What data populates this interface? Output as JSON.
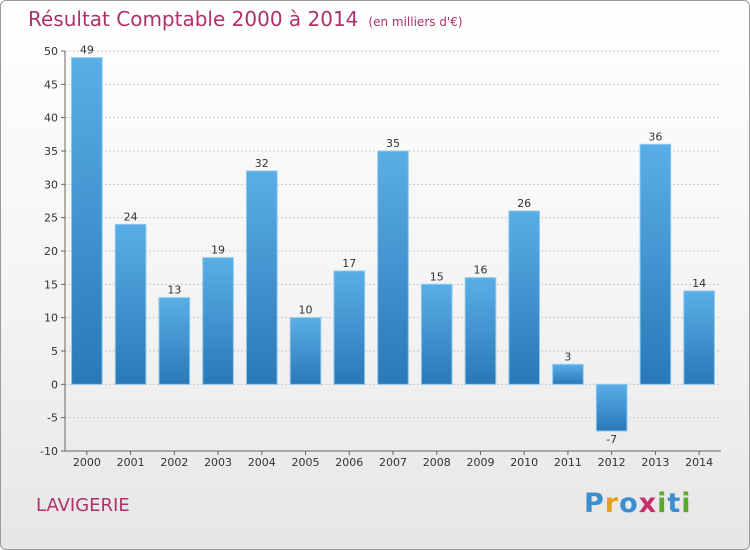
{
  "chart_data": {
    "type": "bar",
    "title": "Résultat Comptable 2000 à 2014",
    "subtitle": "(en milliers d'€)",
    "categories": [
      "2000",
      "2001",
      "2002",
      "2003",
      "2004",
      "2005",
      "2006",
      "2007",
      "2008",
      "2009",
      "2010",
      "2011",
      "2012",
      "2013",
      "2014"
    ],
    "values": [
      49,
      24,
      13,
      19,
      32,
      10,
      17,
      35,
      15,
      16,
      26,
      3,
      -7,
      36,
      14
    ],
    "ylim": [
      -10,
      50
    ],
    "yticks": [
      -10,
      -5,
      0,
      5,
      10,
      15,
      20,
      25,
      30,
      35,
      40,
      45,
      50
    ],
    "grid": true,
    "xlabel": "",
    "ylabel": ""
  },
  "commune": "LAVIGERIE",
  "logo": {
    "letters": [
      "P",
      "r",
      "o",
      "x",
      "i",
      "t",
      "i"
    ],
    "colors": [
      "#3b8fd0",
      "#e8a020",
      "#3b8fd0",
      "#c8306a",
      "#5aa830",
      "#3b8fd0",
      "#5aa830"
    ]
  },
  "colors": {
    "bar_light": "#5aaee6",
    "bar_dark": "#2a78b8",
    "title": "#b0306a"
  }
}
